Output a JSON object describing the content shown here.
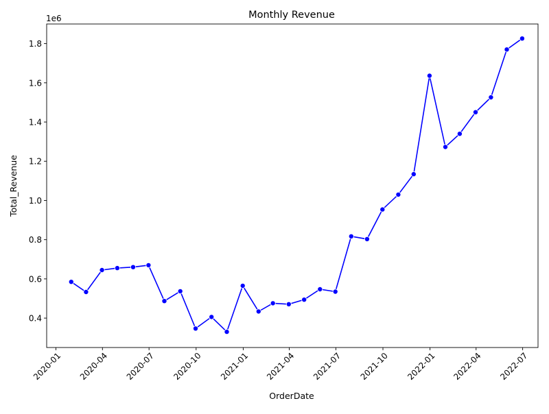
{
  "chart_data": {
    "type": "line",
    "title": "Monthly Revenue",
    "xlabel": "OrderDate",
    "ylabel": "Total_Revenue",
    "y_offset_label": "1e6",
    "x_axis_type": "date",
    "xlim": [
      "2019-12-14",
      "2022-07-31"
    ],
    "ylim": [
      0.25,
      1.9
    ],
    "x_ticks": [
      "2020-01",
      "2020-04",
      "2020-07",
      "2020-10",
      "2021-01",
      "2021-04",
      "2021-07",
      "2021-10",
      "2022-01",
      "2022-04",
      "2022-07"
    ],
    "y_ticks": [
      "0.4",
      "0.6",
      "0.8",
      "1.0",
      "1.2",
      "1.4",
      "1.6",
      "1.8"
    ],
    "grid": false,
    "line_color": "#0000ff",
    "marker_color": "#0000ff",
    "series": [
      {
        "x": [
          "2020-01-31",
          "2020-02-29",
          "2020-03-31",
          "2020-04-30",
          "2020-05-31",
          "2020-06-30",
          "2020-07-31",
          "2020-08-31",
          "2020-09-30",
          "2020-10-31",
          "2020-11-30",
          "2020-12-31",
          "2021-01-31",
          "2021-02-28",
          "2021-03-31",
          "2021-04-30",
          "2021-05-31",
          "2021-06-30",
          "2021-07-31",
          "2021-08-31",
          "2021-09-30",
          "2021-10-31",
          "2021-11-30",
          "2021-12-31",
          "2022-01-31",
          "2022-02-28",
          "2022-03-31",
          "2022-04-30",
          "2022-05-31",
          "2022-06-30"
        ],
        "values": [
          0.585,
          0.533,
          0.645,
          0.655,
          0.66,
          0.67,
          0.487,
          0.537,
          0.347,
          0.406,
          0.33,
          0.565,
          0.434,
          0.476,
          0.471,
          0.494,
          0.547,
          0.535,
          0.817,
          0.803,
          0.954,
          1.03,
          1.134,
          1.636,
          1.273,
          1.34,
          1.45,
          1.526,
          1.77,
          1.826
        ]
      }
    ]
  }
}
